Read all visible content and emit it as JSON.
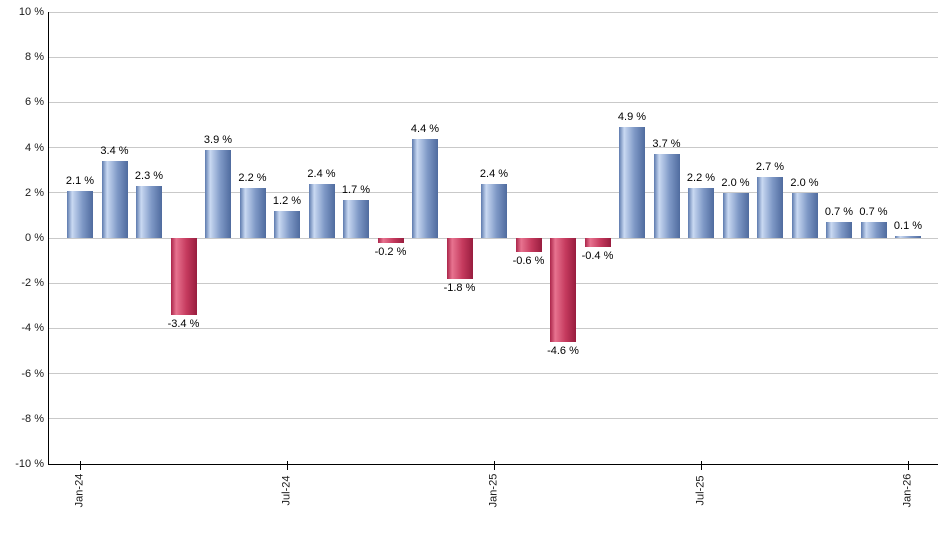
{
  "chart_data": {
    "type": "bar",
    "title": "",
    "xlabel": "",
    "ylabel": "",
    "values": [
      2.1,
      3.4,
      2.3,
      -3.4,
      3.9,
      2.2,
      1.2,
      2.4,
      1.7,
      -0.2,
      4.4,
      -1.8,
      2.4,
      -0.6,
      -4.6,
      -0.4,
      4.9,
      3.7,
      2.2,
      2.0,
      2.7,
      2.0,
      0.7,
      0.7,
      0.1
    ],
    "value_labels": [
      "2.1 %",
      "3.4 %",
      "2.3 %",
      "-3.4 %",
      "3.9 %",
      "2.2 %",
      "1.2 %",
      "2.4 %",
      "1.7 %",
      "-0.2 %",
      "4.4 %",
      "-1.8 %",
      "2.4 %",
      "-0.6 %",
      "-4.6 %",
      "-0.4 %",
      "4.9 %",
      "3.7 %",
      "2.2 %",
      "2.0 %",
      "2.7 %",
      "2.0 %",
      "0.7 %",
      "0.7 %",
      "0.1 %"
    ],
    "x_tick_labels": [
      "Jan-24",
      "Jul-24",
      "Jan-25",
      "Jul-25",
      "Jan-26"
    ],
    "x_tick_bar_indices": [
      0,
      6,
      12,
      18,
      24
    ],
    "y_tick_labels": [
      "10 %",
      "8 %",
      "6 %",
      "4 %",
      "2 %",
      "0 %",
      "-2 %",
      "-4 %",
      "-6 %",
      "-8 %",
      "-10 %"
    ],
    "y_tick_values": [
      10,
      8,
      6,
      4,
      2,
      0,
      -2,
      -4,
      -6,
      -8,
      -10
    ],
    "ylim": [
      -10,
      10
    ],
    "grid": true,
    "legend": "none",
    "colors": {
      "positive_gradient": [
        "#5d7aad",
        "#c9d9f2",
        "#7e98c6",
        "#4f6b9e"
      ],
      "negative_gradient": [
        "#aa2449",
        "#e7738f",
        "#c53a5e",
        "#981d3e"
      ],
      "gridline": "#c9c9c9",
      "axis": "#000000",
      "value_label": "#000000",
      "tick_label": "#1a1a1a",
      "background": "#ffffff"
    }
  }
}
